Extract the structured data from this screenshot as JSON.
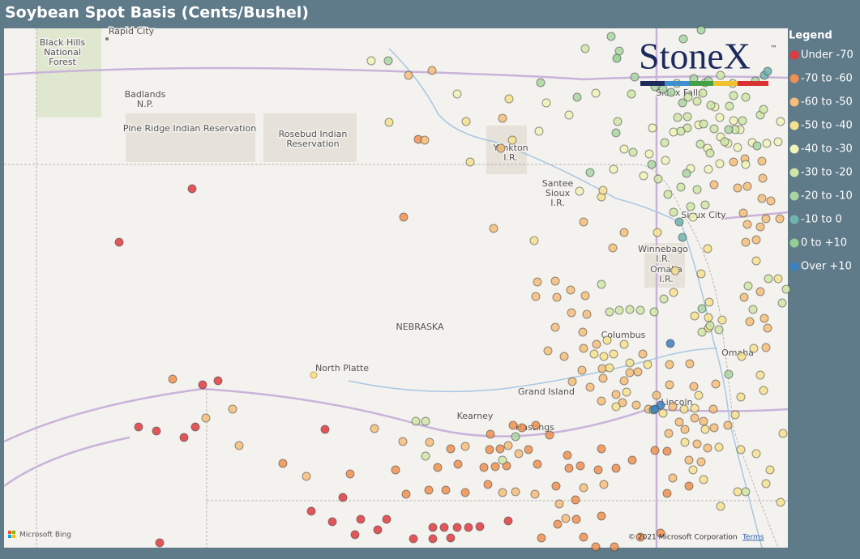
{
  "header": {
    "title": "Soybean Spot Basis (Cents/Bushel)"
  },
  "logo": {
    "text": "StoneX",
    "trademark": "™"
  },
  "legend": {
    "title": "Legend",
    "items": [
      {
        "label": "Under -70",
        "color": "#e0393e"
      },
      {
        "label": "-70 to -60",
        "color": "#f0904f"
      },
      {
        "label": "-60 to -50",
        "color": "#f5bd78"
      },
      {
        "label": "-50 to -40",
        "color": "#f6e28e"
      },
      {
        "label": "-40 to -30",
        "color": "#eef3b6"
      },
      {
        "label": "-30 to -20",
        "color": "#cfe6a6"
      },
      {
        "label": "-20 to -10",
        "color": "#a8d6a2"
      },
      {
        "label": "-10 to 0",
        "color": "#6fb4ae"
      },
      {
        "label": "0 to +10",
        "color": "#93cf92"
      },
      {
        "label": "Over +10",
        "color": "#3a7fc1"
      }
    ]
  },
  "map": {
    "labels": [
      [
        "Rapid City"
      ],
      [
        "Black Hills",
        "National",
        "Forest"
      ],
      [
        "Badlands",
        "N.P."
      ],
      [
        "Pine Ridge Indian Reservation"
      ],
      [
        "Rosebud Indian",
        "Reservation"
      ],
      [
        "Yankton",
        "I.R."
      ],
      [
        "Santee",
        "Sioux",
        "I.R."
      ],
      [
        "Sioux Falls"
      ],
      [
        "Sioux City"
      ],
      [
        "Winnebago",
        "I.R."
      ],
      [
        "Omaha",
        "I.R."
      ],
      [
        "NEBRASKA"
      ],
      [
        "Columbus"
      ],
      [
        "Omaha"
      ],
      [
        "North Platte"
      ],
      [
        "Grand Island"
      ],
      [
        "Kearney"
      ],
      [
        "Hastings"
      ],
      [
        "Lincoln"
      ]
    ]
  },
  "attribution": {
    "provider": "Microsoft Bing",
    "copyright": "© 2021 Microsoft Corporation",
    "terms": "Terms"
  }
}
